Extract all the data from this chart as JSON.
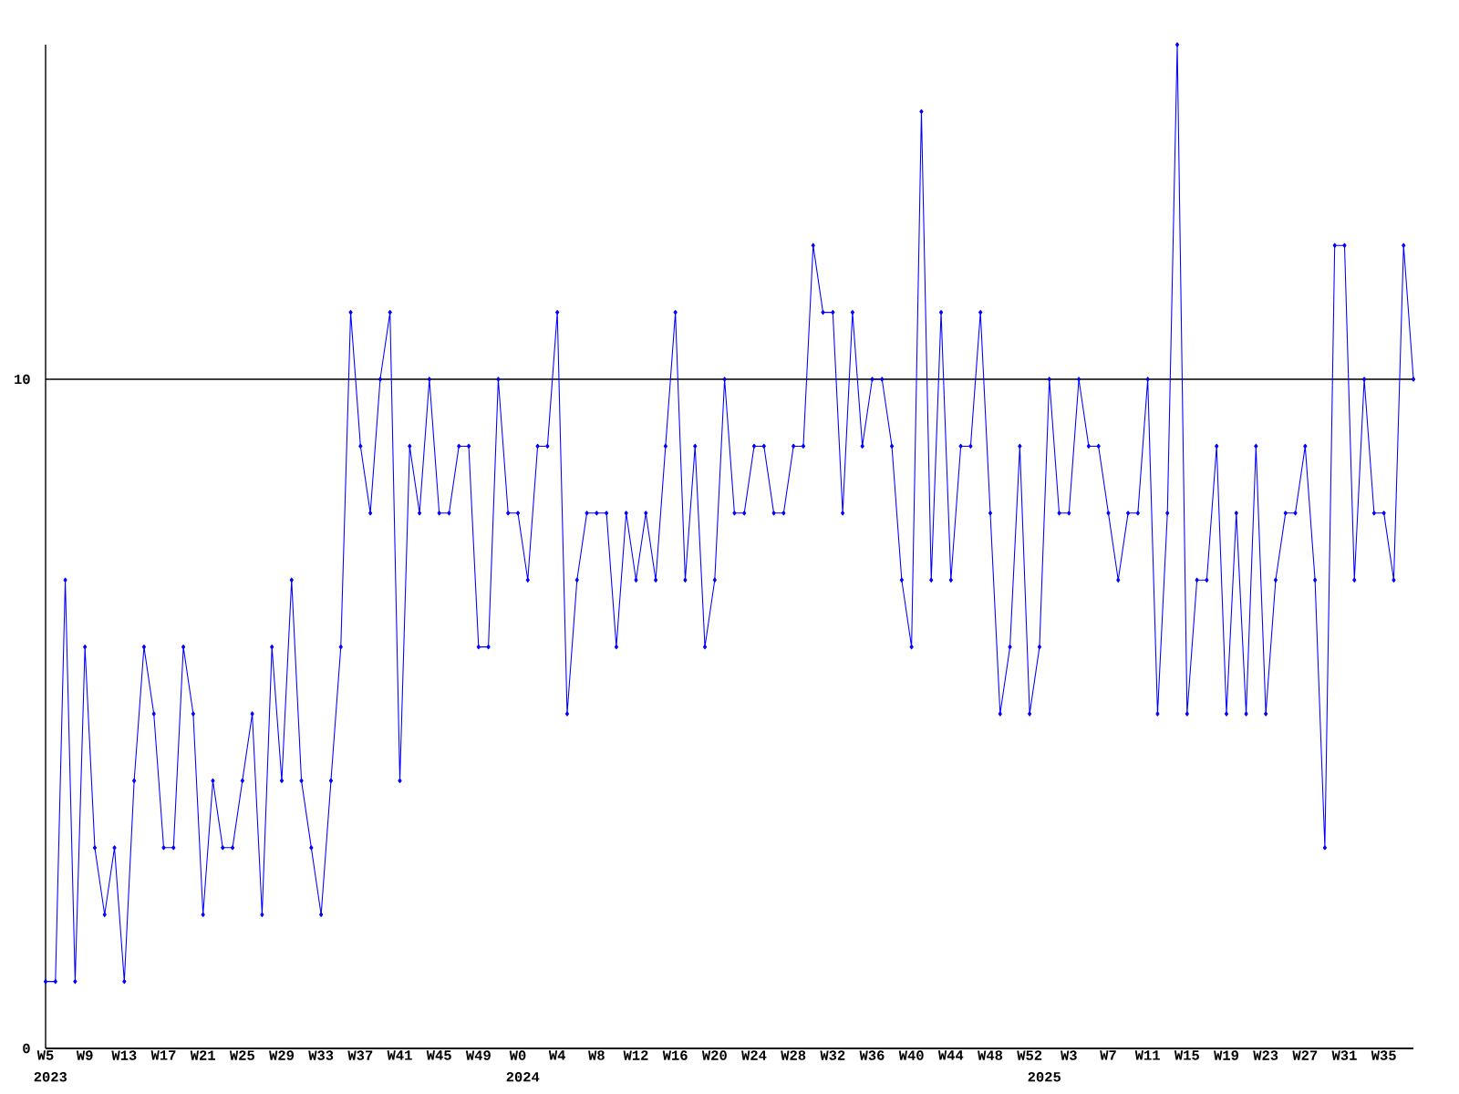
{
  "chart_data": {
    "type": "line",
    "categories": [
      "W5",
      null,
      null,
      null,
      "W9",
      null,
      null,
      null,
      "W13",
      null,
      null,
      null,
      "W17",
      null,
      null,
      null,
      "W21",
      null,
      null,
      null,
      "W25",
      null,
      null,
      null,
      "W29",
      null,
      null,
      null,
      "W33",
      null,
      null,
      null,
      "W37",
      null,
      null,
      null,
      "W41",
      null,
      null,
      null,
      "W45",
      null,
      null,
      null,
      "W49",
      null,
      null,
      null,
      "W0",
      null,
      null,
      null,
      "W4",
      null,
      null,
      null,
      "W8",
      null,
      null,
      null,
      "W12",
      null,
      null,
      null,
      "W16",
      null,
      null,
      null,
      "W20",
      null,
      null,
      null,
      "W24",
      null,
      null,
      null,
      "W28",
      null,
      null,
      null,
      "W32",
      null,
      null,
      null,
      "W36",
      null,
      null,
      null,
      "W40",
      null,
      null,
      null,
      "W44",
      null,
      null,
      null,
      "W48",
      null,
      null,
      null,
      "W52",
      null,
      null,
      null,
      "W3",
      null,
      null,
      null,
      "W7",
      null,
      null,
      null,
      "W11",
      null,
      null,
      null,
      "W15",
      null,
      null,
      null,
      "W19",
      null,
      null,
      null,
      "W23",
      null,
      null,
      null,
      "W27",
      null,
      null,
      null,
      "W31",
      null,
      null,
      null,
      "W35",
      null,
      null,
      null
    ],
    "values": [
      1,
      1,
      7,
      1,
      6,
      3,
      2,
      3,
      1,
      4,
      6,
      5,
      3,
      3,
      6,
      5,
      2,
      4,
      3,
      3,
      4,
      5,
      2,
      6,
      4,
      7,
      4,
      3,
      2,
      4,
      6,
      11,
      9,
      8,
      10,
      11,
      4,
      9,
      8,
      10,
      8,
      8,
      9,
      9,
      6,
      6,
      10,
      8,
      8,
      7,
      9,
      9,
      11,
      5,
      7,
      8,
      8,
      8,
      6,
      8,
      7,
      8,
      7,
      9,
      11,
      7,
      9,
      6,
      7,
      10,
      8,
      8,
      9,
      9,
      8,
      8,
      9,
      9,
      12,
      11,
      11,
      8,
      11,
      9,
      10,
      10,
      9,
      7,
      6,
      14,
      7,
      11,
      7,
      9,
      9,
      11,
      8,
      5,
      6,
      9,
      5,
      6,
      10,
      8,
      8,
      10,
      9,
      9,
      8,
      7,
      8,
      8,
      10,
      5,
      8,
      15,
      5,
      7,
      7,
      9,
      5,
      8,
      5,
      9,
      5,
      7,
      8,
      8,
      9,
      7,
      3,
      12,
      12,
      7,
      10,
      8,
      8,
      7,
      12,
      10
    ],
    "color": "#0000ff",
    "marker": "diamond",
    "ylim": [
      0,
      15
    ],
    "yticks": [
      0,
      10
    ],
    "grid": "y",
    "annotations": [
      "2023",
      "2024",
      "2025"
    ]
  }
}
